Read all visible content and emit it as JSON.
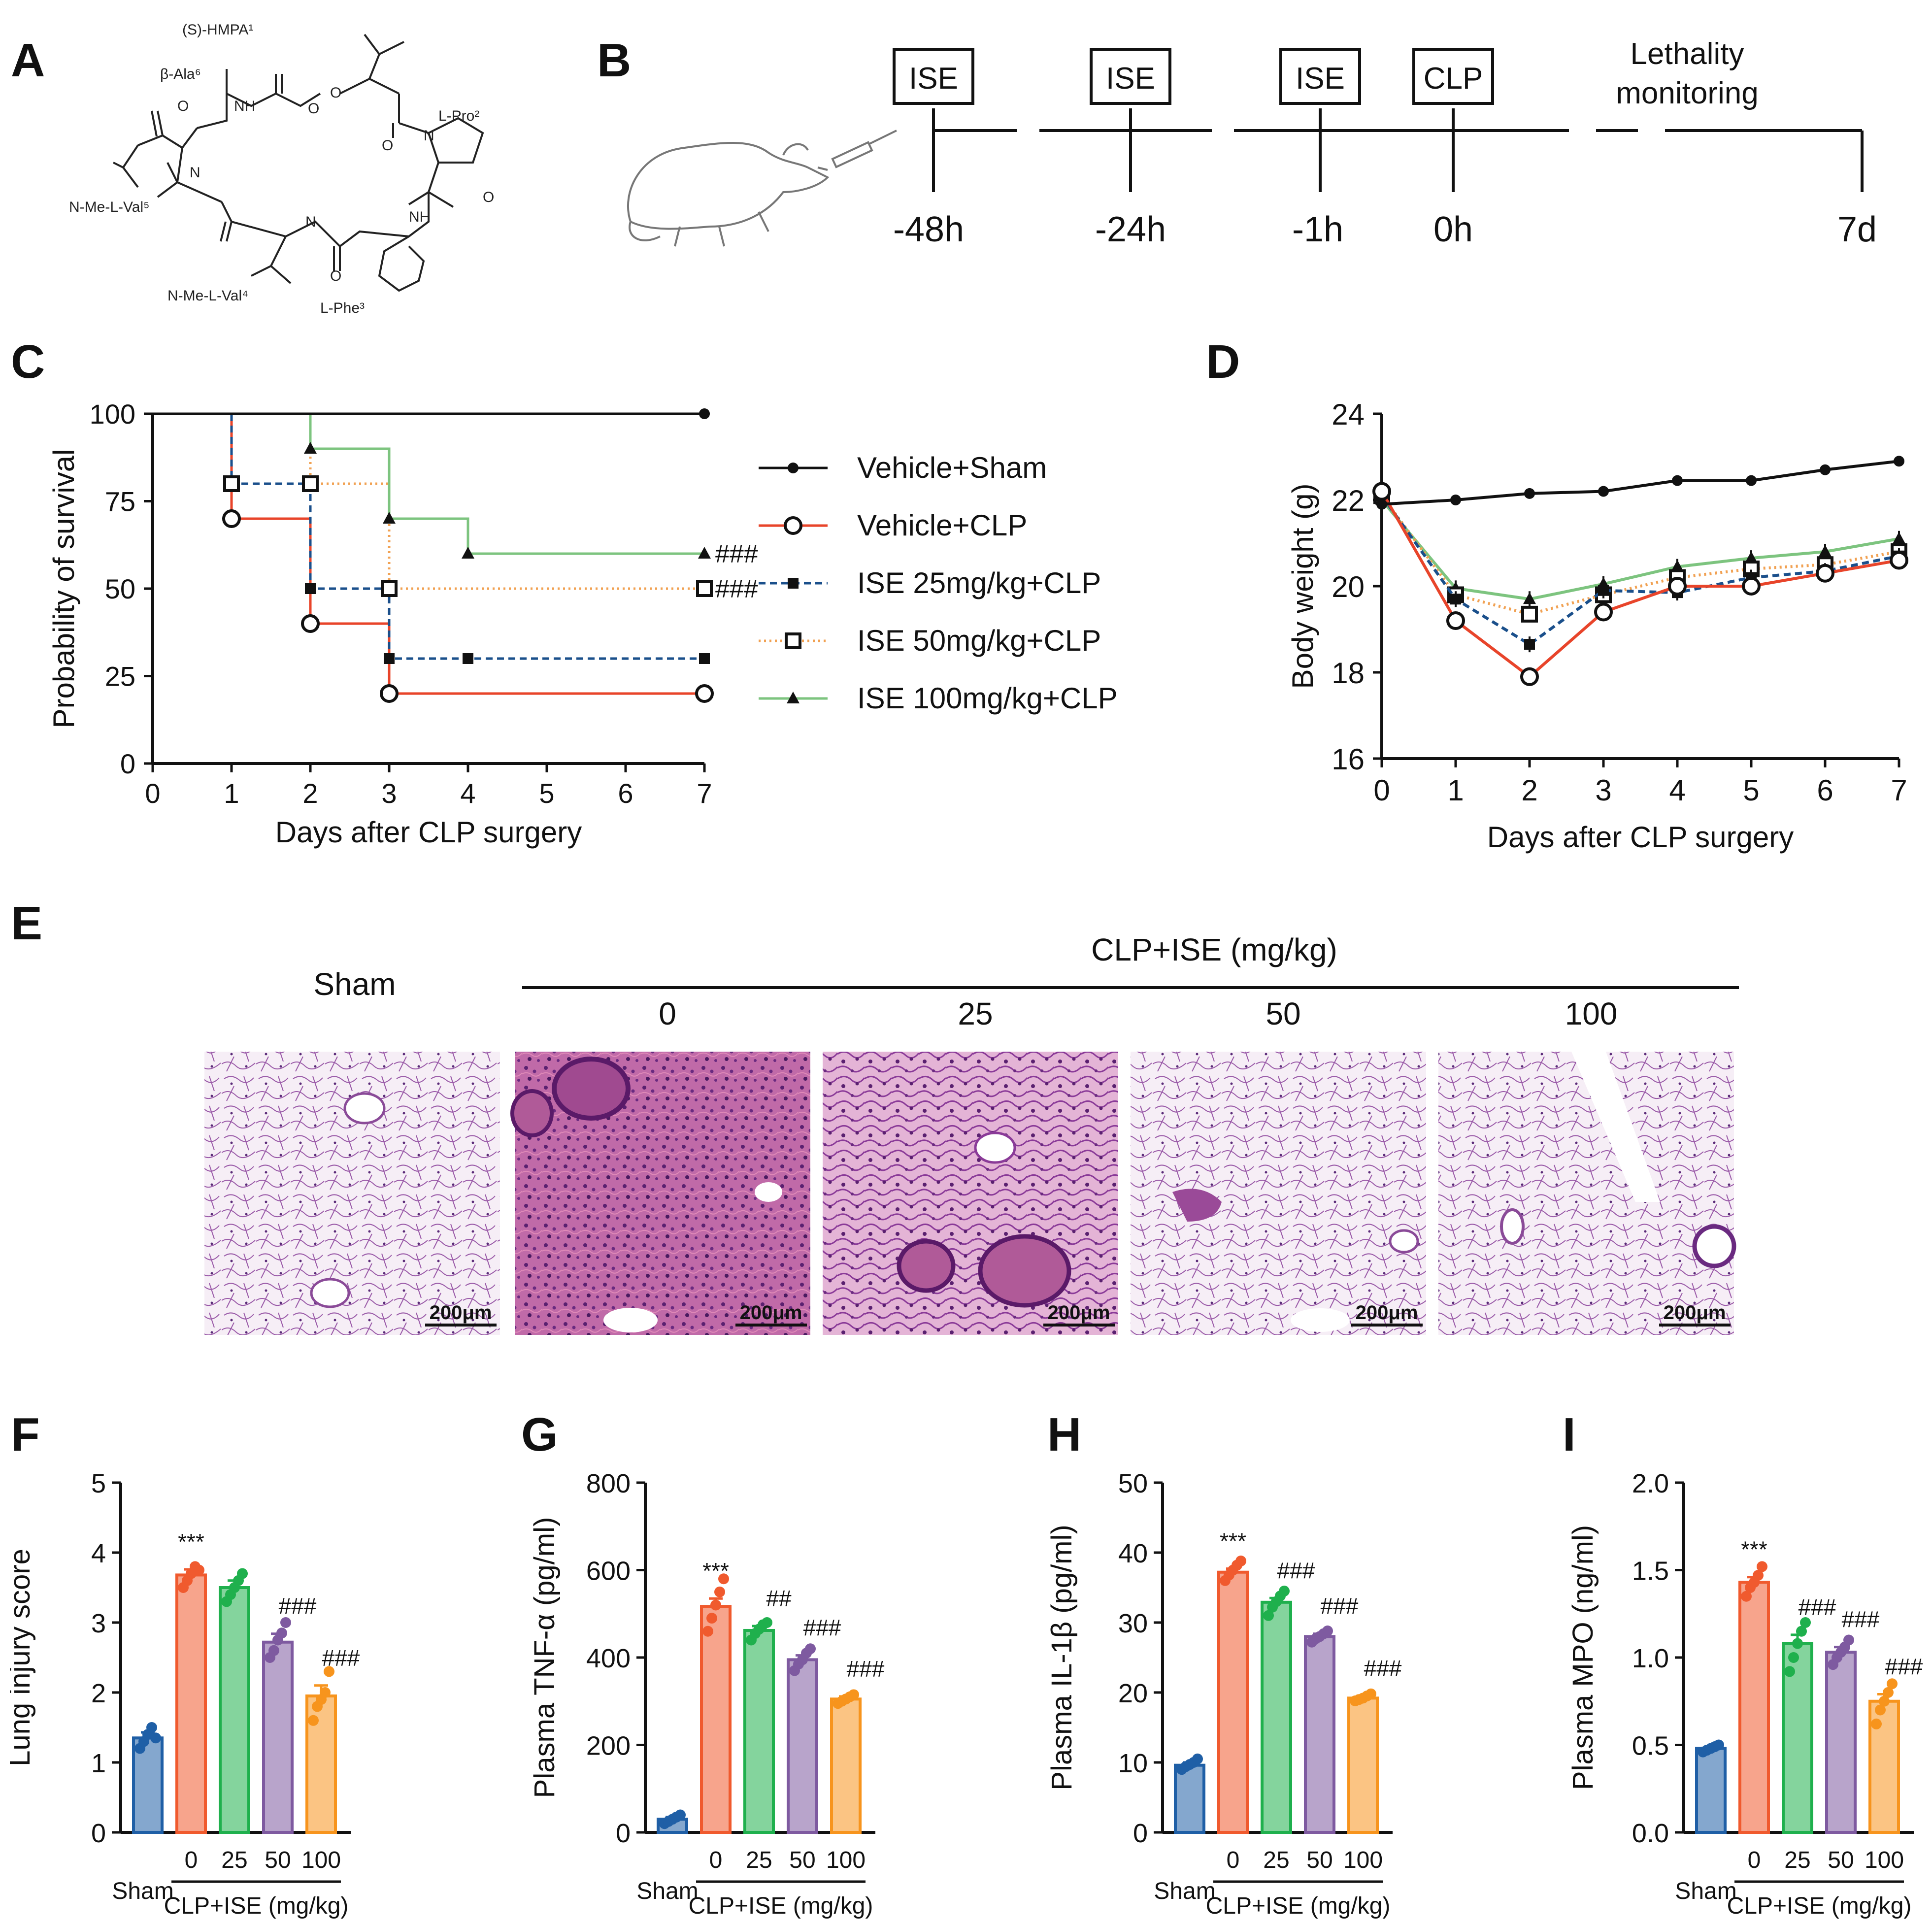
{
  "panel_labels": [
    "A",
    "B",
    "C",
    "D",
    "E",
    "F",
    "G",
    "H",
    "I"
  ],
  "palette": {
    "sham": "#1f5fa6",
    "clp": "#f05a2e",
    "ise25": "#1fb04d",
    "ise50": "#7e5aa0",
    "ise100": "#f7941d",
    "line_sham": "#111111",
    "line_clp": "#e8442a",
    "line_ise25": "#1a4f8b",
    "line_ise50": "#f1a152",
    "line_ise100": "#7dc47f"
  },
  "structure": {
    "labels": [
      "(S)-HMPA¹",
      "β-Ala⁶",
      "L-Pro²",
      "N-Me-L-Val⁵",
      "N-Me-L-Val⁴",
      "L-Phe³"
    ],
    "atoms": [
      "NH",
      "O",
      "O",
      "O",
      "O",
      "N",
      "N",
      "N",
      "O",
      "NH",
      "O"
    ]
  },
  "timeline": {
    "boxes": [
      "ISE",
      "ISE",
      "ISE",
      "CLP"
    ],
    "times": [
      "-48h",
      "-24h",
      "-1h",
      "0h",
      "7d"
    ],
    "monitor_line1": "Lethality",
    "monitor_line2": "monitoring"
  },
  "histology": {
    "sham_label": "Sham",
    "group_label": "CLP+ISE (mg/kg)",
    "doses": [
      "0",
      "25",
      "50",
      "100"
    ],
    "scale": "200μm"
  },
  "chart_data": [
    {
      "id": "C",
      "type": "line",
      "title": "",
      "xlabel": "Days after CLP surgery",
      "ylabel": "Probability of survival",
      "xlim": [
        0,
        7
      ],
      "ylim": [
        0,
        100
      ],
      "xticks": [
        "0",
        "1",
        "2",
        "3",
        "4",
        "5",
        "6",
        "7"
      ],
      "yticks": [
        "0",
        "25",
        "50",
        "75",
        "100"
      ],
      "step": true,
      "series": [
        {
          "name": "Vehicle+Sham",
          "x": [
            0,
            7
          ],
          "y": [
            100,
            100
          ],
          "marker_x": [
            7
          ],
          "marker_y": [
            100
          ],
          "annotation": ""
        },
        {
          "name": "Vehicle+CLP",
          "x": [
            0,
            1,
            2,
            3,
            7
          ],
          "y": [
            100,
            70,
            40,
            20,
            20
          ],
          "marker_x": [
            1,
            2,
            3,
            7
          ],
          "marker_y": [
            70,
            40,
            20,
            20
          ],
          "annotation": ""
        },
        {
          "name": "ISE 25mg/kg+CLP",
          "x": [
            0,
            1,
            2,
            3,
            7
          ],
          "y": [
            100,
            80,
            50,
            30,
            30
          ],
          "marker_x": [
            1,
            2,
            3,
            4,
            7
          ],
          "marker_y": [
            80,
            50,
            30,
            30,
            30
          ],
          "annotation": ""
        },
        {
          "name": "ISE 50mg/kg+CLP",
          "x": [
            0,
            2,
            3,
            7
          ],
          "y": [
            100,
            80,
            50,
            50
          ],
          "marker_x": [
            1,
            2,
            3,
            7
          ],
          "marker_y": [
            80,
            80,
            50,
            50
          ],
          "annotation": "###"
        },
        {
          "name": "ISE 100mg/kg+CLP",
          "x": [
            0,
            2,
            3,
            4,
            7
          ],
          "y": [
            100,
            90,
            70,
            60,
            60
          ],
          "marker_x": [
            2,
            3,
            4,
            7
          ],
          "marker_y": [
            90,
            70,
            60,
            60
          ],
          "annotation": "###"
        }
      ]
    },
    {
      "id": "D",
      "type": "line",
      "title": "",
      "xlabel": "Days after CLP surgery",
      "ylabel": "Body weight (g)",
      "xlim": [
        0,
        7
      ],
      "ylim": [
        16,
        24
      ],
      "xticks": [
        "0",
        "1",
        "2",
        "3",
        "4",
        "5",
        "6",
        "7"
      ],
      "yticks": [
        "16",
        "18",
        "20",
        "22",
        "24"
      ],
      "step": false,
      "series": [
        {
          "name": "Vehicle+Sham",
          "x": [
            0,
            1,
            2,
            3,
            4,
            5,
            6,
            7
          ],
          "y": [
            21.9,
            22.0,
            22.15,
            22.2,
            22.45,
            22.45,
            22.7,
            22.9
          ]
        },
        {
          "name": "Vehicle+CLP",
          "x": [
            0,
            1,
            2,
            3,
            4,
            5,
            6,
            7
          ],
          "y": [
            22.2,
            19.2,
            17.9,
            19.4,
            20.0,
            20.0,
            20.3,
            20.6
          ]
        },
        {
          "name": "ISE 25mg/kg+CLP",
          "x": [
            0,
            1,
            2,
            3,
            4,
            5,
            6,
            7
          ],
          "y": [
            22.1,
            19.7,
            18.65,
            19.9,
            19.85,
            20.2,
            20.35,
            20.7
          ]
        },
        {
          "name": "ISE 50mg/kg+CLP",
          "x": [
            0,
            1,
            2,
            3,
            4,
            5,
            6,
            7
          ],
          "y": [
            22.1,
            19.8,
            19.35,
            19.8,
            20.2,
            20.4,
            20.5,
            20.8
          ]
        },
        {
          "name": "ISE 100mg/kg+CLP",
          "x": [
            0,
            1,
            2,
            3,
            4,
            5,
            6,
            7
          ],
          "y": [
            22.0,
            19.95,
            19.7,
            20.05,
            20.45,
            20.65,
            20.8,
            21.1
          ]
        }
      ]
    },
    {
      "id": "F",
      "type": "bar",
      "title": "",
      "ylabel": "Lung injury score",
      "xlabel": "CLP+ISE (mg/kg)",
      "ylim": [
        0,
        5
      ],
      "yticks": [
        "0",
        "1",
        "2",
        "3",
        "4",
        "5"
      ],
      "categories": [
        "Sham",
        "0",
        "25",
        "50",
        "100"
      ],
      "values": [
        1.35,
        3.68,
        3.5,
        2.72,
        1.95
      ],
      "errors": [
        0.08,
        0.08,
        0.1,
        0.12,
        0.15
      ],
      "points": [
        [
          1.2,
          1.3,
          1.4,
          1.5,
          1.35
        ],
        [
          3.5,
          3.6,
          3.7,
          3.8,
          3.75
        ],
        [
          3.3,
          3.4,
          3.5,
          3.6,
          3.7
        ],
        [
          2.5,
          2.6,
          2.75,
          2.85,
          3.0
        ],
        [
          1.6,
          1.8,
          1.9,
          2.0,
          2.3
        ]
      ],
      "annotations": [
        "",
        "***",
        "",
        "###",
        "###"
      ]
    },
    {
      "id": "G",
      "type": "bar",
      "title": "",
      "ylabel": "Plasma TNF-α (pg/ml)",
      "xlabel": "CLP+ISE (mg/kg)",
      "ylim": [
        0,
        800
      ],
      "yticks": [
        "0",
        "200",
        "400",
        "600",
        "800"
      ],
      "categories": [
        "Sham",
        "0",
        "25",
        "50",
        "100"
      ],
      "values": [
        30,
        517,
        462,
        395,
        305
      ],
      "errors": [
        5,
        18,
        10,
        10,
        6
      ],
      "points": [
        [
          20,
          25,
          30,
          35,
          40
        ],
        [
          460,
          490,
          520,
          550,
          580
        ],
        [
          440,
          455,
          465,
          475,
          480
        ],
        [
          370,
          385,
          395,
          410,
          420
        ],
        [
          295,
          300,
          305,
          310,
          315
        ]
      ],
      "annotations": [
        "",
        "***",
        "##",
        "###",
        "###"
      ]
    },
    {
      "id": "H",
      "type": "bar",
      "title": "",
      "ylabel": "Plasma IL-1β (pg/ml)",
      "xlabel": "CLP+ISE (mg/kg)",
      "ylim": [
        0,
        50
      ],
      "yticks": [
        "0",
        "10",
        "20",
        "30",
        "40",
        "50"
      ],
      "categories": [
        "Sham",
        "0",
        "25",
        "50",
        "100"
      ],
      "values": [
        9.6,
        37.2,
        32.9,
        28.0,
        19.2
      ],
      "errors": [
        0.4,
        0.5,
        0.6,
        0.4,
        0.3
      ],
      "points": [
        [
          9.0,
          9.4,
          9.7,
          10.0,
          10.5
        ],
        [
          36.0,
          36.8,
          37.5,
          38.2,
          38.8
        ],
        [
          31.0,
          32.2,
          33.0,
          33.8,
          34.5
        ],
        [
          27.2,
          27.7,
          28.0,
          28.4,
          28.8
        ],
        [
          18.8,
          19.0,
          19.2,
          19.5,
          19.8
        ]
      ],
      "annotations": [
        "",
        "***",
        "###",
        "###",
        "###"
      ]
    },
    {
      "id": "I",
      "type": "bar",
      "title": "",
      "ylabel": "Plasma MPO (ng/ml)",
      "xlabel": "CLP+ISE (mg/kg)",
      "ylim": [
        0,
        2.0
      ],
      "yticks": [
        "0.0",
        "0.5",
        "1.0",
        "1.5",
        "2.0"
      ],
      "categories": [
        "Sham",
        "0",
        "25",
        "50",
        "100"
      ],
      "values": [
        0.48,
        1.43,
        1.08,
        1.03,
        0.75
      ],
      "errors": [
        0.01,
        0.03,
        0.05,
        0.03,
        0.04
      ],
      "points": [
        [
          0.46,
          0.47,
          0.48,
          0.49,
          0.5
        ],
        [
          1.35,
          1.4,
          1.43,
          1.47,
          1.52
        ],
        [
          0.92,
          1.0,
          1.08,
          1.15,
          1.2
        ],
        [
          0.96,
          1.0,
          1.03,
          1.06,
          1.1
        ],
        [
          0.62,
          0.7,
          0.75,
          0.8,
          0.85
        ]
      ],
      "annotations": [
        "",
        "***",
        "###",
        "###",
        "###"
      ]
    }
  ]
}
